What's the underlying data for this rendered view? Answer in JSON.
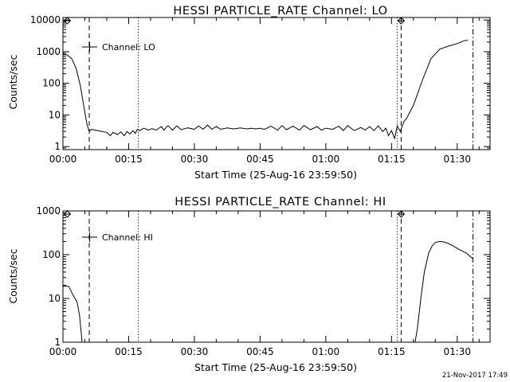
{
  "footer_timestamp": "21-Nov-2017 17:49",
  "chart_data": [
    {
      "type": "line",
      "title": "HESSI PARTICLE_RATE Channel: LO",
      "xlabel": "Start Time (25-Aug-16 23:59:50)",
      "ylabel": "Counts/sec",
      "x_unit": "minutes from start",
      "xlim": [
        0,
        97.5
      ],
      "ylim": [
        0.8,
        12000
      ],
      "y_scale": "log",
      "x_ticks": [
        {
          "x": 0,
          "label": "00:00"
        },
        {
          "x": 15,
          "label": "00:15"
        },
        {
          "x": 30,
          "label": "00:30"
        },
        {
          "x": 45,
          "label": "00:45"
        },
        {
          "x": 60,
          "label": "01:00"
        },
        {
          "x": 75,
          "label": "01:15"
        },
        {
          "x": 90,
          "label": "01:30"
        }
      ],
      "y_ticks": [
        {
          "y": 1,
          "label": "1"
        },
        {
          "y": 10,
          "label": "10"
        },
        {
          "y": 100,
          "label": "100"
        },
        {
          "y": 1000,
          "label": "1000"
        },
        {
          "y": 10000,
          "label": "10000"
        }
      ],
      "legend": {
        "label": "Channel: LO",
        "position": "top-left"
      },
      "series": [
        {
          "name": "Channel: LO",
          "x": [
            0,
            1,
            2,
            3,
            4,
            5,
            5.5,
            6,
            6.5,
            10,
            10.8,
            11.4,
            12.5,
            13.2,
            14,
            14.6,
            15.3,
            16,
            16.5,
            17,
            17.5,
            18.5,
            19.5,
            20.3,
            21.3,
            22.5,
            23,
            24,
            25,
            26,
            27,
            28.5,
            30,
            31,
            32,
            33,
            34,
            35,
            36,
            37.5,
            39,
            40.5,
            42,
            43,
            44,
            45,
            46,
            47.5,
            49,
            50,
            51,
            52.5,
            54,
            55,
            56.5,
            58,
            59,
            60,
            61.5,
            63,
            64,
            65,
            66.5,
            68,
            69,
            70,
            71,
            72,
            73,
            73.7,
            74.3,
            75,
            75.7,
            76.3,
            77,
            77.8,
            78.5,
            80,
            82,
            84,
            86,
            88,
            90,
            91.5,
            92.4
          ],
          "y": [
            850,
            780,
            600,
            300,
            80,
            12,
            5,
            3,
            3.5,
            2.8,
            2.2,
            2.8,
            2.4,
            2.9,
            2.2,
            3.0,
            2.5,
            3.2,
            2.6,
            3.5,
            3.2,
            3.8,
            3.3,
            3.7,
            3.3,
            4.3,
            3.3,
            4.6,
            3.3,
            4.5,
            3.4,
            3.9,
            3.5,
            4.5,
            3.5,
            4.8,
            3.5,
            4.3,
            3.5,
            3.9,
            3.6,
            3.9,
            3.6,
            3.8,
            3.6,
            3.8,
            3.5,
            4.4,
            3.3,
            4.6,
            3.4,
            4.4,
            3.3,
            4.6,
            3.4,
            4.3,
            3.3,
            3.8,
            3.5,
            4.4,
            3.2,
            4.6,
            3.2,
            4.0,
            3.3,
            4.3,
            3.2,
            4.5,
            3.0,
            3.8,
            2.2,
            3.2,
            1.8,
            4.5,
            3.0,
            6,
            8,
            20,
            120,
            600,
            1200,
            1500,
            1800,
            2200,
            2300
          ]
        }
      ],
      "markers": [
        {
          "x": 1.0,
          "style": "diamond-at-top"
        },
        {
          "x": 77.2,
          "style": "diamond-at-top"
        }
      ],
      "vertical_lines": [
        {
          "x": 6.0,
          "style": "dashed"
        },
        {
          "x": 17.2,
          "style": "dotted"
        },
        {
          "x": 76.3,
          "style": "dotted"
        },
        {
          "x": 77.2,
          "style": "dashed"
        },
        {
          "x": 93.6,
          "style": "dash-dot"
        }
      ]
    },
    {
      "type": "line",
      "title": "HESSI PARTICLE_RATE Channel: HI",
      "xlabel": "Start Time (25-Aug-16 23:59:50)",
      "ylabel": "Counts/sec",
      "x_unit": "minutes from start",
      "xlim": [
        0,
        97.5
      ],
      "ylim": [
        1,
        1000
      ],
      "y_scale": "log",
      "x_ticks": [
        {
          "x": 0,
          "label": "00:00"
        },
        {
          "x": 15,
          "label": "00:15"
        },
        {
          "x": 30,
          "label": "00:30"
        },
        {
          "x": 45,
          "label": "00:45"
        },
        {
          "x": 60,
          "label": "01:00"
        },
        {
          "x": 75,
          "label": "01:15"
        },
        {
          "x": 90,
          "label": "01:30"
        }
      ],
      "y_ticks": [
        {
          "y": 1,
          "label": "1"
        },
        {
          "y": 10,
          "label": "10"
        },
        {
          "y": 100,
          "label": "100"
        },
        {
          "y": 1000,
          "label": "1000"
        }
      ],
      "legend": {
        "label": "Channel: HI",
        "position": "top-left"
      },
      "series": [
        {
          "name": "Channel: HI",
          "segments": [
            {
              "x": [
                0,
                1.3,
                1.8,
                2.5,
                3.2,
                3.8,
                4.2,
                4.4
              ],
              "y": [
                19,
                19,
                15,
                11,
                8.5,
                4,
                1.5,
                0.9
              ]
            },
            {
              "x": [
                80.3,
                80.9,
                81.7,
                82.5,
                83.5,
                84.3,
                85,
                86,
                87,
                88,
                89,
                90.5,
                92,
                93.6
              ],
              "y": [
                0.9,
                2,
                10,
                40,
                110,
                160,
                190,
                200,
                195,
                180,
                160,
                130,
                110,
                80
              ]
            }
          ]
        }
      ],
      "markers": [
        {
          "x": 1.0,
          "style": "diamond-at-top"
        },
        {
          "x": 77.2,
          "style": "diamond-at-top"
        }
      ],
      "vertical_lines": [
        {
          "x": 6.0,
          "style": "dashed"
        },
        {
          "x": 17.2,
          "style": "dotted"
        },
        {
          "x": 76.3,
          "style": "dotted"
        },
        {
          "x": 77.2,
          "style": "dashed"
        },
        {
          "x": 93.6,
          "style": "dash-dot"
        }
      ]
    }
  ]
}
